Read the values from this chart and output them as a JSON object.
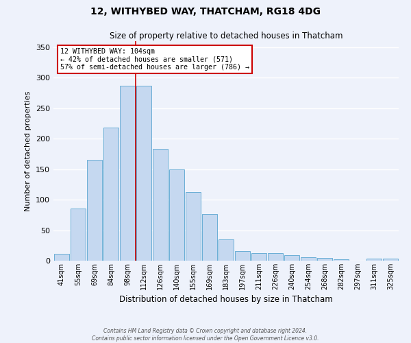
{
  "title": "12, WITHYBED WAY, THATCHAM, RG18 4DG",
  "subtitle": "Size of property relative to detached houses in Thatcham",
  "xlabel": "Distribution of detached houses by size in Thatcham",
  "ylabel": "Number of detached properties",
  "bar_labels": [
    "41sqm",
    "55sqm",
    "69sqm",
    "84sqm",
    "98sqm",
    "112sqm",
    "126sqm",
    "140sqm",
    "155sqm",
    "169sqm",
    "183sqm",
    "197sqm",
    "211sqm",
    "226sqm",
    "240sqm",
    "254sqm",
    "268sqm",
    "282sqm",
    "297sqm",
    "311sqm",
    "325sqm"
  ],
  "bar_values": [
    11,
    85,
    165,
    218,
    287,
    287,
    183,
    150,
    113,
    76,
    35,
    16,
    12,
    12,
    9,
    6,
    5,
    2,
    0,
    3,
    3
  ],
  "bar_color": "#c5d8f0",
  "bar_edge_color": "#6aaed6",
  "vline_x": 4.5,
  "vline_color": "#cc0000",
  "annotation_title": "12 WITHYBED WAY: 104sqm",
  "annotation_line1": "← 42% of detached houses are smaller (571)",
  "annotation_line2": "57% of semi-detached houses are larger (786) →",
  "annotation_box_color": "#ffffff",
  "annotation_box_edge": "#cc0000",
  "ylim": [
    0,
    360
  ],
  "yticks": [
    0,
    50,
    100,
    150,
    200,
    250,
    300,
    350
  ],
  "footer1": "Contains HM Land Registry data © Crown copyright and database right 2024.",
  "footer2": "Contains public sector information licensed under the Open Government Licence v3.0.",
  "background_color": "#eef2fb",
  "plot_bg_color": "#eef2fb",
  "grid_color": "#ffffff"
}
